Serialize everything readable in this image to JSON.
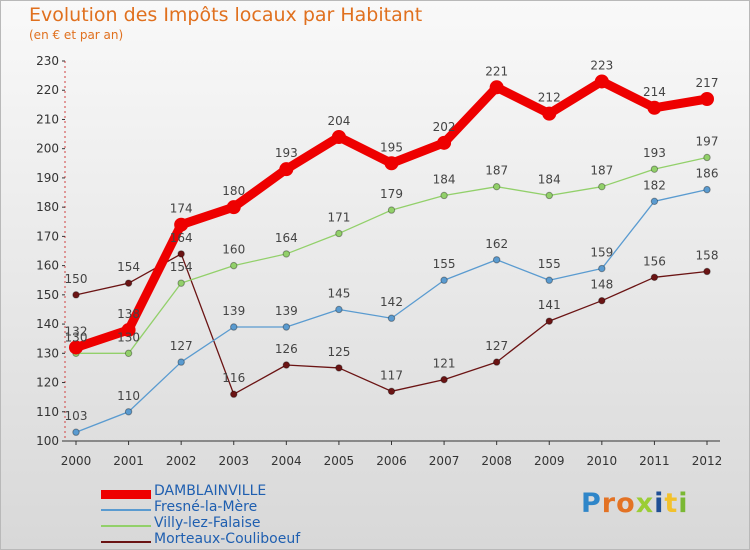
{
  "header": {
    "title": "Evolution des Impôts locaux par Habitant",
    "subtitle": "(en € et par an)"
  },
  "logo": {
    "text": "Proxiti",
    "letters": [
      {
        "char": "P",
        "color": "#2f86c9"
      },
      {
        "char": "r",
        "color": "#e37224"
      },
      {
        "char": "o",
        "color": "#e37224"
      },
      {
        "char": "x",
        "color": "#9bcd35"
      },
      {
        "char": "i",
        "color": "#1f4f95"
      },
      {
        "char": "t",
        "color": "#f2c12c"
      },
      {
        "char": "i",
        "color": "#7ab833"
      }
    ]
  },
  "chart_data": {
    "type": "line",
    "title": "Evolution des Impôts locaux par Habitant",
    "subtitle": "(en € et par an)",
    "xlabel": "",
    "ylabel": "",
    "ylim": [
      100,
      230
    ],
    "yticks": [
      100,
      110,
      120,
      130,
      140,
      150,
      160,
      170,
      180,
      190,
      200,
      210,
      220,
      230
    ],
    "grid": false,
    "legend_position": "bottom-left",
    "categories": [
      "2000",
      "2001",
      "2002",
      "2003",
      "2004",
      "2005",
      "2006",
      "2007",
      "2008",
      "2009",
      "2010",
      "2011",
      "2012"
    ],
    "series": [
      {
        "name": "Morteaux-Couliboeuf",
        "color": "#6b1414",
        "thick": false,
        "values": [
          150,
          154,
          164,
          116,
          126,
          125,
          117,
          121,
          127,
          141,
          148,
          156,
          158
        ]
      },
      {
        "name": "Fresné-la-Mère",
        "color": "#5a9bd0",
        "thick": false,
        "values": [
          103,
          110,
          127,
          139,
          139,
          145,
          142,
          155,
          162,
          155,
          159,
          182,
          186
        ]
      },
      {
        "name": "Villy-lez-Falaise",
        "color": "#92d06a",
        "thick": false,
        "values": [
          130,
          130,
          154,
          160,
          164,
          171,
          179,
          184,
          187,
          184,
          187,
          193,
          197
        ]
      },
      {
        "name": "DAMBLAINVILLE",
        "color": "#ee0000",
        "thick": true,
        "values": [
          132,
          138,
          174,
          180,
          193,
          204,
          195,
          202,
          221,
          212,
          223,
          214,
          217
        ]
      }
    ],
    "legend_order": [
      "DAMBLAINVILLE",
      "Fresné-la-Mère",
      "Villy-lez-Falaise",
      "Morteaux-Couliboeuf"
    ]
  }
}
